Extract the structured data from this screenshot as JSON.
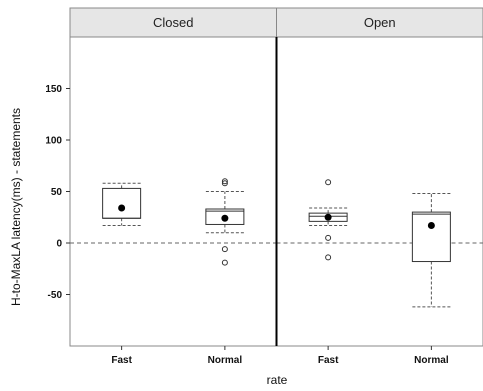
{
  "chart_data": {
    "type": "boxplot",
    "xlabel": "rate",
    "ylabel": "H-to-MaxLA latency(ms) - statements",
    "ylim": [
      -100,
      200
    ],
    "yticks": [
      -50,
      0,
      50,
      100,
      150
    ],
    "reference_line": 0,
    "panels": [
      {
        "name": "Closed",
        "categories": [
          "Fast",
          "Normal"
        ],
        "boxes": [
          {
            "category": "Fast",
            "min": 17,
            "q1": 24,
            "median": 24,
            "q3": 53,
            "max": 58,
            "mean": 34,
            "outliers": []
          },
          {
            "category": "Normal",
            "min": 10,
            "q1": 18,
            "median": 31,
            "q3": 33,
            "max": 50,
            "mean": 24,
            "outliers": [
              60,
              58,
              -6,
              -19
            ]
          }
        ]
      },
      {
        "name": "Open",
        "categories": [
          "Fast",
          "Normal"
        ],
        "boxes": [
          {
            "category": "Fast",
            "min": 17,
            "q1": 21,
            "median": 26,
            "q3": 29,
            "max": 34,
            "mean": 25,
            "outliers": [
              59,
              5,
              -14
            ]
          },
          {
            "category": "Normal",
            "min": -62,
            "q1": -18,
            "median": 28,
            "q3": 30,
            "max": 48,
            "mean": 17,
            "outliers": []
          }
        ]
      }
    ],
    "colors": {
      "strip_bg": "#e6e6e6",
      "box_line": "#333333",
      "whisker": "#555555",
      "reference": "#666666",
      "mean": "#000000"
    }
  }
}
